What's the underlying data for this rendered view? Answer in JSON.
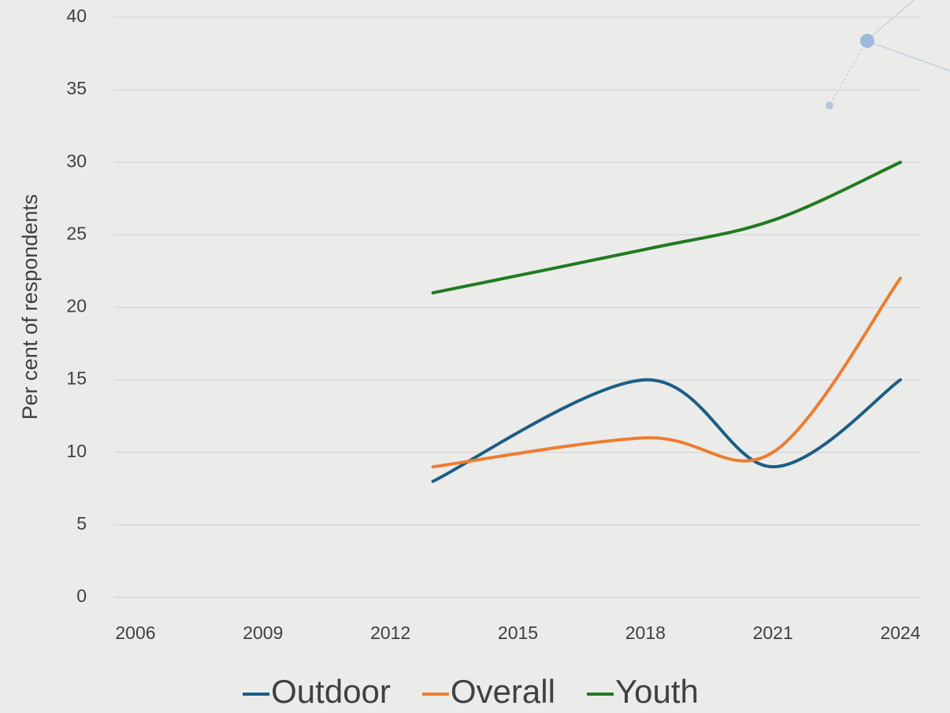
{
  "chart_data": {
    "type": "line",
    "y_label": "Per cent of respondents",
    "x": [
      2013,
      2018,
      2021,
      2024
    ],
    "series": [
      {
        "name": "Outdoor",
        "color": "#1b5e85",
        "values": [
          8,
          15,
          9,
          15
        ]
      },
      {
        "name": "Overall",
        "color": "#ed7d31",
        "values": [
          9,
          11,
          10,
          22
        ]
      },
      {
        "name": "Youth",
        "color": "#217a21",
        "values": [
          21,
          24,
          26,
          30
        ]
      }
    ],
    "xlim": [
      2005.5,
      2024.5
    ],
    "xticks": [
      2006,
      2009,
      2012,
      2015,
      2018,
      2021,
      2024
    ],
    "ylim": [
      0,
      40
    ],
    "yticks": [
      0,
      5,
      10,
      15,
      20,
      25,
      30,
      35,
      40
    ],
    "grid": true,
    "smooth": true,
    "legend": "bottom"
  }
}
